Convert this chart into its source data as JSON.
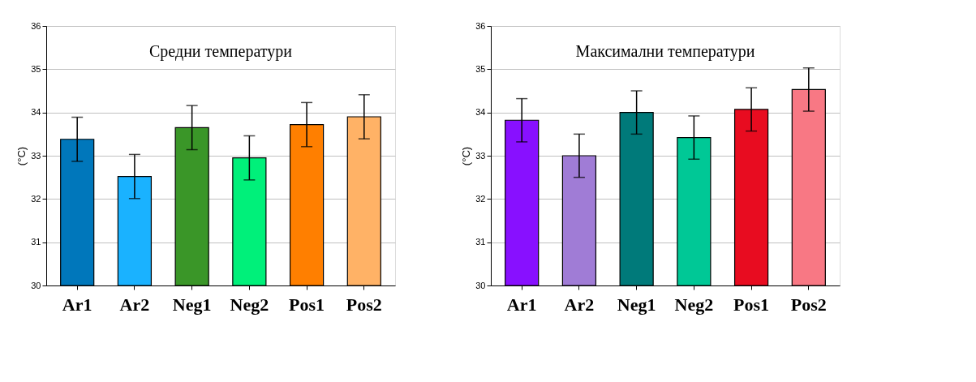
{
  "chart_data": [
    {
      "type": "bar",
      "title": "Средни температури",
      "ylabel": "(°C)",
      "categories": [
        "Ar1",
        "Ar2",
        "Neg1",
        "Neg2",
        "Pos1",
        "Pos2"
      ],
      "values": [
        33.38,
        32.52,
        33.65,
        32.95,
        33.72,
        33.9
      ],
      "errors": [
        0.51,
        0.51,
        0.51,
        0.51,
        0.51,
        0.51
      ],
      "colors": [
        "#0077bb",
        "#1ab2ff",
        "#3a9628",
        "#00f07a",
        "#ff7f00",
        "#ffb266"
      ],
      "ylim": [
        30,
        36
      ],
      "yticks": [
        30,
        31,
        32,
        33,
        34,
        35,
        36
      ],
      "grid": "y",
      "legend": false
    },
    {
      "type": "bar",
      "title": "Максимални температури",
      "ylabel": "(°C)",
      "categories": [
        "Ar1",
        "Ar2",
        "Neg1",
        "Neg2",
        "Pos1",
        "Pos2"
      ],
      "values": [
        33.82,
        33.0,
        34.0,
        33.42,
        34.07,
        34.53
      ],
      "errors": [
        0.5,
        0.5,
        0.5,
        0.5,
        0.5,
        0.5
      ],
      "colors": [
        "#8810ff",
        "#a07cd6",
        "#007a7a",
        "#00c896",
        "#e80c20",
        "#f87884"
      ],
      "ylim": [
        30,
        36
      ],
      "yticks": [
        30,
        31,
        32,
        33,
        34,
        35,
        36
      ],
      "grid": "y",
      "legend": false
    }
  ]
}
